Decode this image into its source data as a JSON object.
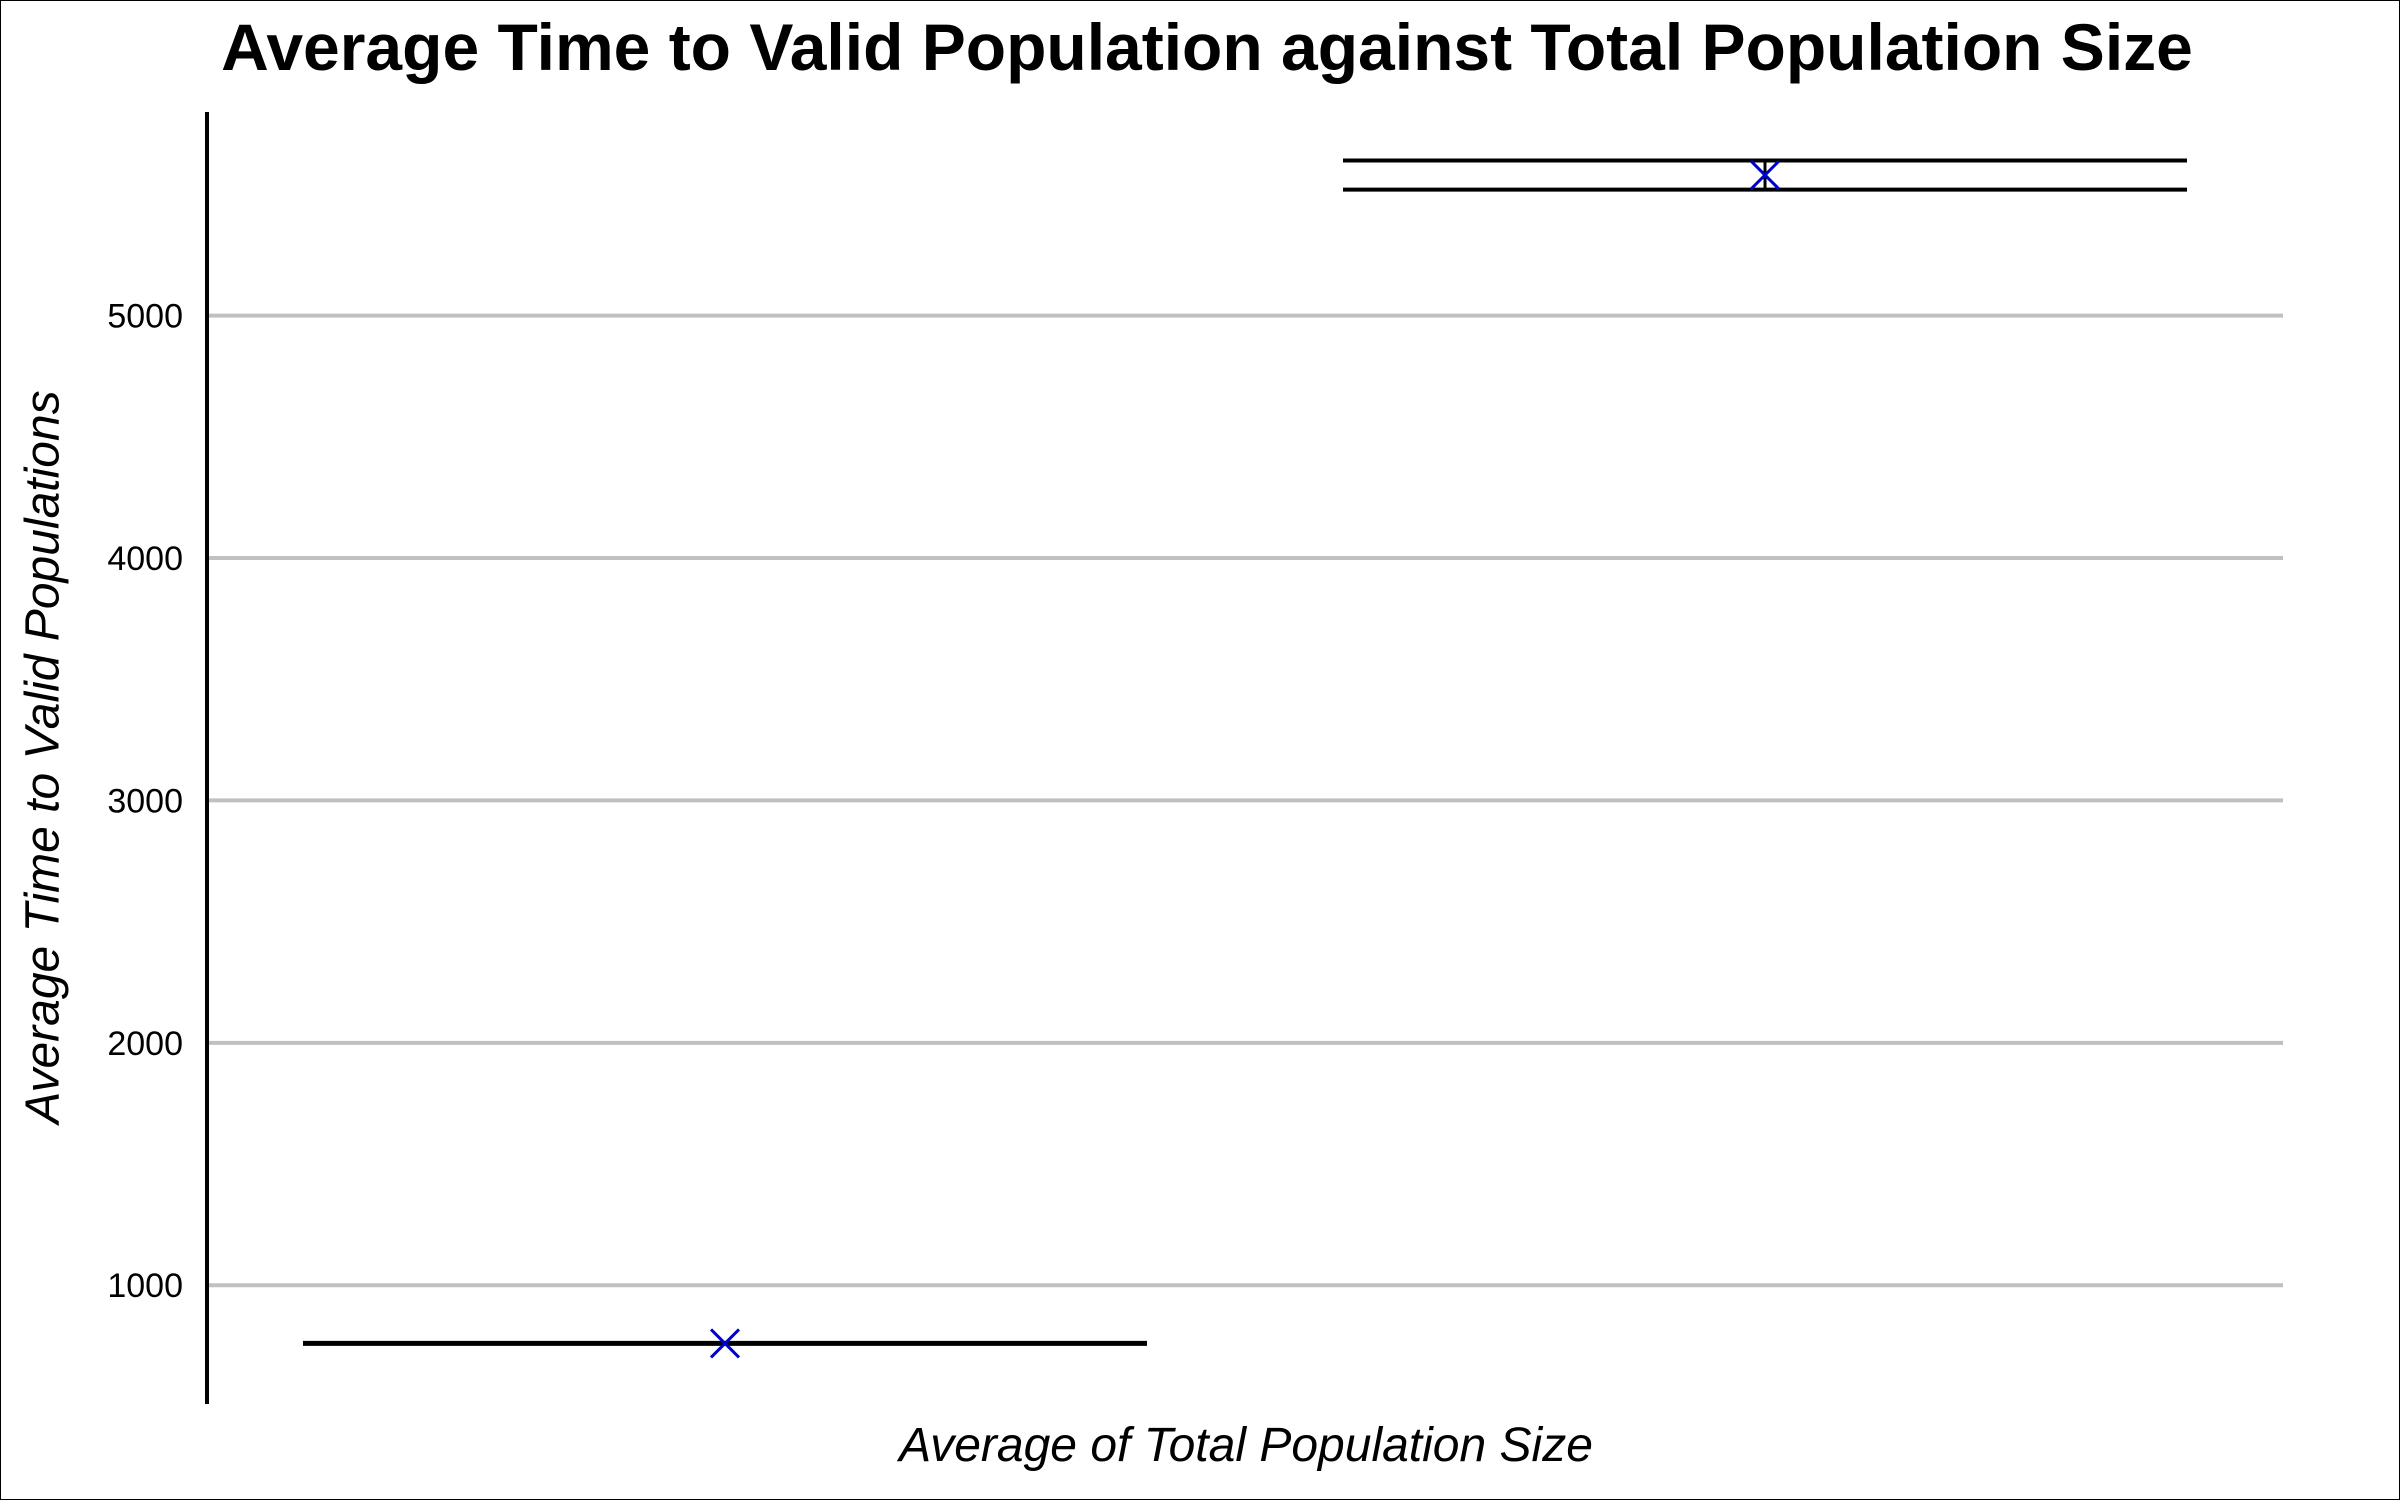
{
  "chart_data": {
    "type": "errorbar",
    "title": "Average Time to Valid Population against Total Population Size",
    "xlabel": "Average of Total Population Size",
    "ylabel": "Average Time to Valid Populations",
    "ylim": [
      510,
      5840
    ],
    "yticks": [
      1000,
      2000,
      3000,
      4000,
      5000
    ],
    "grid": "horizontal",
    "points": [
      {
        "mean": 760,
        "upper": 765,
        "lower": 760
      },
      {
        "mean": 5580,
        "upper": 5640,
        "lower": 5520
      }
    ],
    "colors": {
      "marker": "#0000cc",
      "whisker": "#000000",
      "grid": "#c0c0c0",
      "axis": "#000000"
    },
    "marker_icon": "x-marker"
  }
}
